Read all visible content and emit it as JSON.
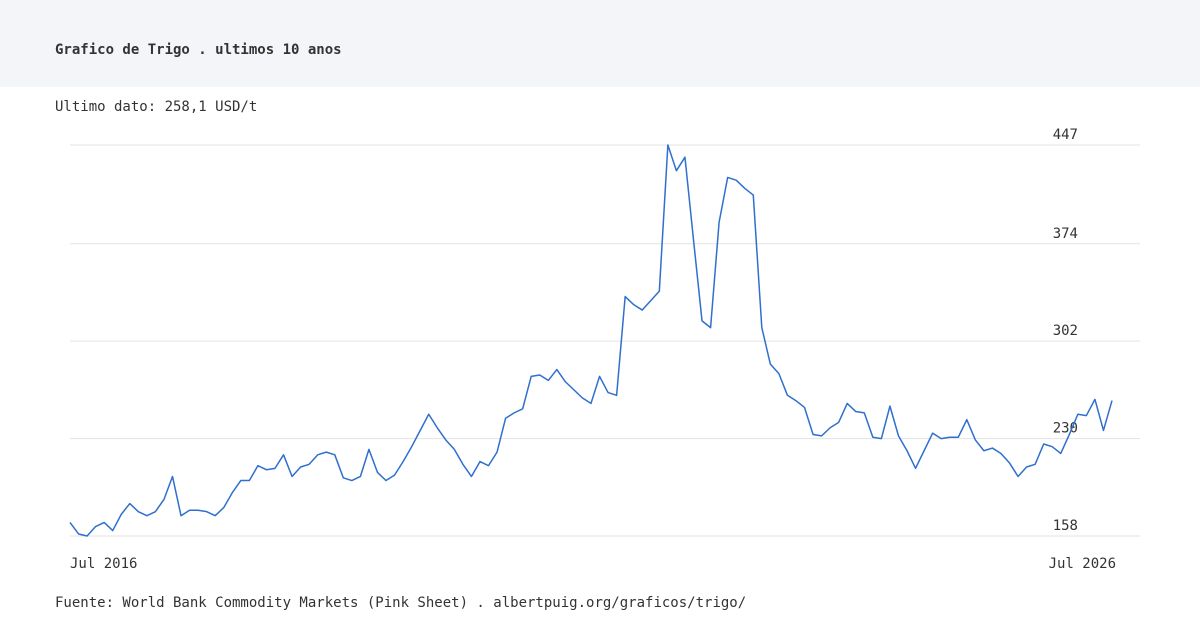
{
  "chart_data": {
    "type": "line",
    "title": "Grafico de Trigo . ultimos 10 anos",
    "subtitle": "Ultimo dato: 258,1 USD/t",
    "source": "Fuente: World Bank Commodity Markets (Pink Sheet) . albertpuig.org/graficos/trigo/",
    "categories": [
      "Jul 2016",
      null,
      null,
      null,
      null,
      null,
      null,
      null,
      null,
      null,
      null,
      null,
      null,
      null,
      null,
      null,
      null,
      null,
      null,
      null,
      null,
      null,
      null,
      null,
      null,
      null,
      null,
      null,
      null,
      null,
      null,
      null,
      null,
      null,
      null,
      null,
      null,
      null,
      null,
      null,
      null,
      null,
      null,
      null,
      null,
      null,
      null,
      null,
      null,
      null,
      null,
      null,
      null,
      null,
      null,
      null,
      null,
      null,
      null,
      null,
      null,
      null,
      null,
      null,
      null,
      null,
      null,
      null,
      null,
      null,
      null,
      null,
      null,
      null,
      null,
      null,
      null,
      null,
      null,
      null,
      null,
      null,
      null,
      null,
      null,
      null,
      null,
      null,
      null,
      null,
      null,
      null,
      null,
      null,
      null,
      null,
      null,
      null,
      null,
      null,
      null,
      null,
      null,
      null,
      null,
      null,
      null,
      null,
      null,
      null,
      null,
      null,
      null,
      null,
      null,
      null,
      null,
      null,
      null,
      null,
      null,
      null,
      "Jul 2026"
    ],
    "series": [
      {
        "name": "Trigo",
        "color": "#2f6fcf",
        "values": [
          168,
          159.5,
          158,
          165,
          168,
          162,
          174,
          182,
          176,
          173,
          176,
          185,
          202,
          173,
          177,
          177,
          176,
          173,
          179,
          190,
          199,
          199,
          210,
          207,
          208,
          218,
          202,
          209,
          211,
          218,
          220,
          218,
          201,
          199,
          202,
          222,
          205,
          199,
          203,
          213,
          224,
          236,
          248,
          238,
          229,
          222,
          211,
          202,
          213,
          210,
          220,
          245,
          249,
          252,
          276,
          277,
          273,
          281,
          272,
          266,
          260,
          256,
          276,
          264,
          262,
          335,
          329,
          325,
          332,
          339,
          447,
          428,
          438,
          377,
          317,
          312,
          390,
          423,
          421,
          415,
          410,
          312,
          285,
          278,
          262,
          258,
          253,
          233,
          232,
          238,
          242,
          256,
          250,
          249,
          231,
          230,
          254,
          232,
          221,
          208,
          221,
          234,
          230,
          231,
          231,
          244,
          229,
          221,
          223,
          219,
          212,
          202,
          209,
          211,
          226,
          224,
          219,
          233,
          248,
          247,
          259,
          236,
          258.1
        ]
      }
    ],
    "ylim": [
      158,
      447
    ],
    "yticks": [
      158,
      230,
      302,
      374,
      447
    ],
    "grid": true
  }
}
